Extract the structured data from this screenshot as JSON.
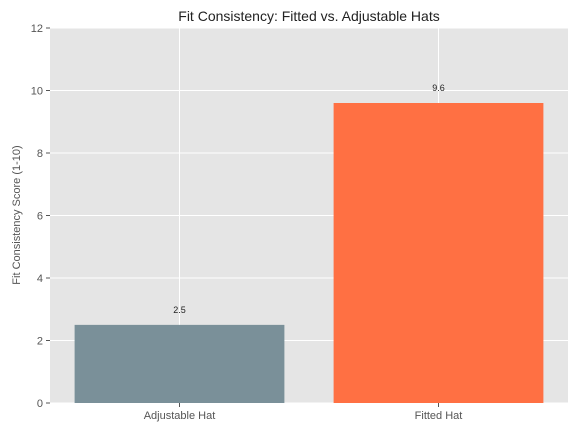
{
  "chart_data": {
    "type": "bar",
    "title": "Fit Consistency: Fitted vs. Adjustable Hats",
    "xlabel": "",
    "ylabel": "Fit Consistency Score (1-10)",
    "categories": [
      "Adjustable Hat",
      "Fitted Hat"
    ],
    "values": [
      2.5,
      9.6
    ],
    "data_labels": [
      "2.5",
      "9.6"
    ],
    "bar_colors": [
      "#7a9099",
      "#ff7043"
    ],
    "ylim": [
      0,
      12
    ],
    "yticks": [
      0,
      2,
      4,
      6,
      8,
      10,
      12
    ],
    "grid": true,
    "background": "#e5e5e5",
    "legend": "none"
  }
}
